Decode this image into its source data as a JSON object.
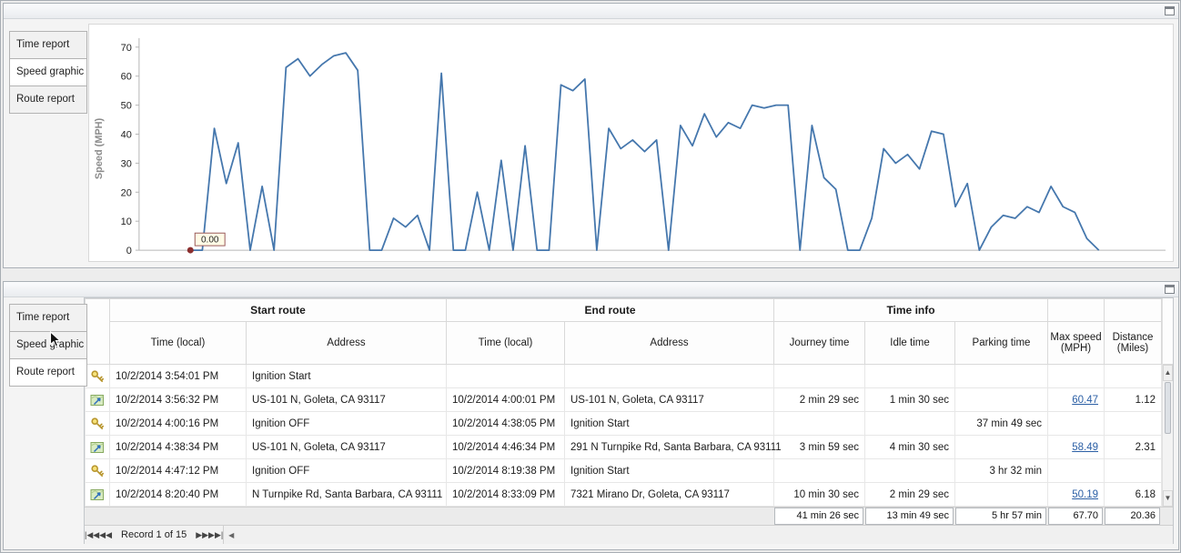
{
  "colors": {
    "chart_line": "#4577ad",
    "chart_marker": "#8b2e2e",
    "link": "#2b5fa5",
    "ylabel": "#8a8a8a"
  },
  "icons": {
    "scroll_up": "▲",
    "scroll_down": "▼",
    "scroll_left": "◀"
  },
  "top_panel": {
    "tabs": [
      {
        "label": "Time report",
        "selected": false
      },
      {
        "label": "Speed graphic",
        "selected": true
      },
      {
        "label": "Route report",
        "selected": false
      }
    ]
  },
  "chart_data": {
    "type": "line",
    "title": "",
    "xlabel": "",
    "ylabel": "Speed (MPH)",
    "ylim": [
      0,
      70
    ],
    "yticks": [
      0,
      10,
      20,
      30,
      40,
      50,
      60,
      70
    ],
    "grid": false,
    "legend": false,
    "x_axis_labels_visible": false,
    "start_annotation": {
      "label": "0.00",
      "value": 0
    },
    "values": [
      0,
      0,
      42,
      23,
      37,
      0,
      22,
      0,
      63,
      66,
      60,
      64,
      67,
      68,
      62,
      0,
      0,
      11,
      8,
      12,
      0,
      61,
      0,
      0,
      20,
      0,
      31,
      0,
      36,
      0,
      0,
      57,
      55,
      59,
      0,
      42,
      35,
      38,
      34,
      38,
      0,
      43,
      36,
      47,
      39,
      44,
      42,
      50,
      49,
      50,
      50,
      0,
      43,
      25,
      21,
      0,
      0,
      11,
      35,
      30,
      33,
      28,
      41,
      40,
      15,
      23,
      0,
      8,
      12,
      11,
      15,
      13,
      22,
      15,
      13,
      4,
      0
    ]
  },
  "bottom_panel": {
    "tabs": [
      {
        "label": "Time report",
        "selected": false
      },
      {
        "label": "Speed graphic",
        "selected": false
      },
      {
        "label": "Route report",
        "selected": true
      }
    ],
    "grid": {
      "group_headers": {
        "start": "Start route",
        "end": "End route",
        "time": "Time info"
      },
      "columns": {
        "start_time": "Time (local)",
        "start_address": "Address",
        "end_time": "Time (local)",
        "end_address": "Address",
        "journey": "Journey time",
        "idle": "Idle time",
        "parking": "Parking time",
        "max_speed": "Max speed (MPH)",
        "distance": "Distance (Miles)"
      },
      "rows": [
        {
          "icon": "key",
          "start_time": "10/2/2014 3:54:01 PM",
          "start_address": "Ignition Start",
          "end_time": "",
          "end_address": "",
          "journey": "",
          "idle": "",
          "parking": "",
          "max_speed": "",
          "max_speed_link": false,
          "distance": ""
        },
        {
          "icon": "route",
          "start_time": "10/2/2014 3:56:32 PM",
          "start_address": "US-101 N, Goleta, CA 93117",
          "end_time": "10/2/2014 4:00:01 PM",
          "end_address": "US-101 N, Goleta, CA 93117",
          "journey": "2 min 29 sec",
          "idle": "1 min 30 sec",
          "parking": "",
          "max_speed": "60.47",
          "max_speed_link": true,
          "distance": "1.12"
        },
        {
          "icon": "key",
          "start_time": "10/2/2014 4:00:16 PM",
          "start_address": "Ignition OFF",
          "end_time": "10/2/2014 4:38:05 PM",
          "end_address": "Ignition Start",
          "journey": "",
          "idle": "",
          "parking": "37 min 49 sec",
          "max_speed": "",
          "max_speed_link": false,
          "distance": ""
        },
        {
          "icon": "route",
          "start_time": "10/2/2014 4:38:34 PM",
          "start_address": "US-101 N, Goleta, CA 93117",
          "end_time": "10/2/2014 4:46:34 PM",
          "end_address": "291 N Turnpike Rd, Santa Barbara, CA 93111",
          "journey": "3 min 59 sec",
          "idle": "4 min 30 sec",
          "parking": "",
          "max_speed": "58.49",
          "max_speed_link": true,
          "distance": "2.31"
        },
        {
          "icon": "key",
          "start_time": "10/2/2014 4:47:12 PM",
          "start_address": "Ignition OFF",
          "end_time": "10/2/2014 8:19:38 PM",
          "end_address": "Ignition Start",
          "journey": "",
          "idle": "",
          "parking": "3 hr 32 min",
          "max_speed": "",
          "max_speed_link": false,
          "distance": ""
        },
        {
          "icon": "route",
          "start_time": "10/2/2014 8:20:40 PM",
          "start_address": "N Turnpike Rd, Santa Barbara, CA 93111",
          "end_time": "10/2/2014 8:33:09 PM",
          "end_address": "7321 Mirano Dr, Goleta, CA 93117",
          "journey": "10 min 30 sec",
          "idle": "2 min 29 sec",
          "parking": "",
          "max_speed": "50.19",
          "max_speed_link": true,
          "distance": "6.18"
        }
      ],
      "summary": {
        "journey": "41 min 26 sec",
        "idle": "13 min 49 sec",
        "parking": "5 hr 57 min",
        "max_speed": "67.70",
        "distance": "20.36"
      },
      "navigator": {
        "record_status": "Record 1 of 15",
        "buttons": [
          {
            "name": "first-record",
            "glyph": "|◀"
          },
          {
            "name": "prev-page",
            "glyph": "◀◀"
          },
          {
            "name": "prev-record",
            "glyph": "◀"
          },
          {
            "name": "next-record",
            "glyph": "▶"
          },
          {
            "name": "next-page",
            "glyph": "▶▶"
          },
          {
            "name": "last-record",
            "glyph": "▶|"
          }
        ]
      }
    }
  }
}
